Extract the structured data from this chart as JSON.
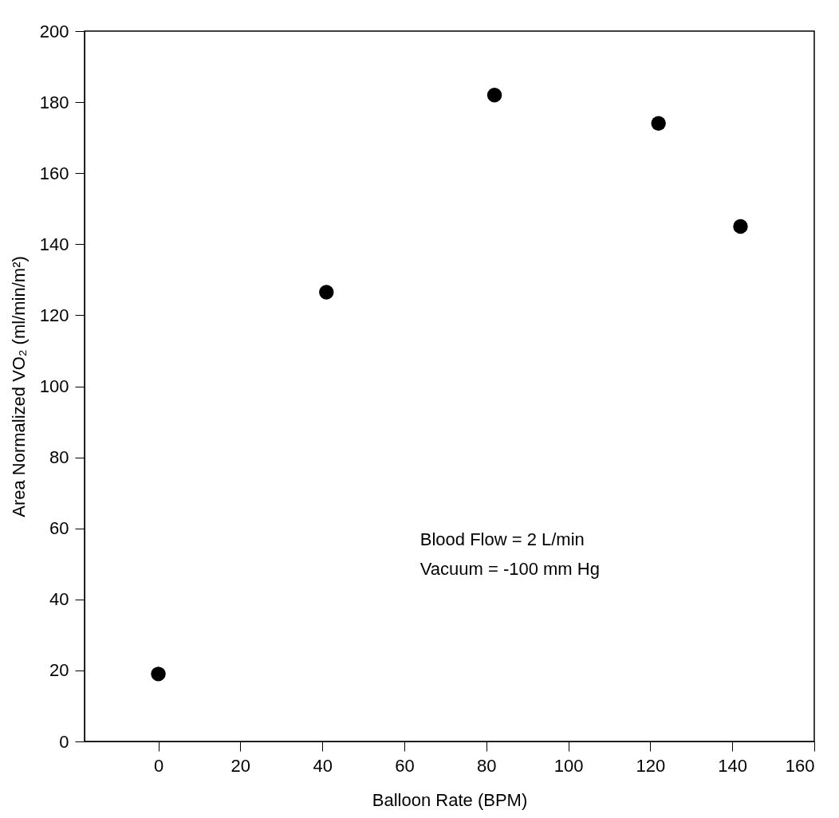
{
  "chart_data": {
    "type": "scatter",
    "xlabel": "Balloon Rate (BPM)",
    "ylabel": "Area Normalized VO₂ (ml/min/m²)",
    "x": [
      0,
      41,
      82,
      122,
      142
    ],
    "series": [
      {
        "color": "#000000",
        "values": [
          19,
          126.5,
          182,
          174,
          145
        ]
      }
    ],
    "marker": "circle",
    "xlim": [
      -18,
      160
    ],
    "xticks": [
      0,
      20,
      40,
      60,
      80,
      100,
      120,
      140,
      160
    ],
    "ylim": [
      0,
      200
    ],
    "yticks": [
      0,
      20,
      40,
      60,
      80,
      100,
      120,
      140,
      160,
      180,
      200
    ],
    "grid": false,
    "annotations": [
      "Blood Flow = 2 L/min",
      "Vacuum = -100 mm Hg"
    ]
  }
}
